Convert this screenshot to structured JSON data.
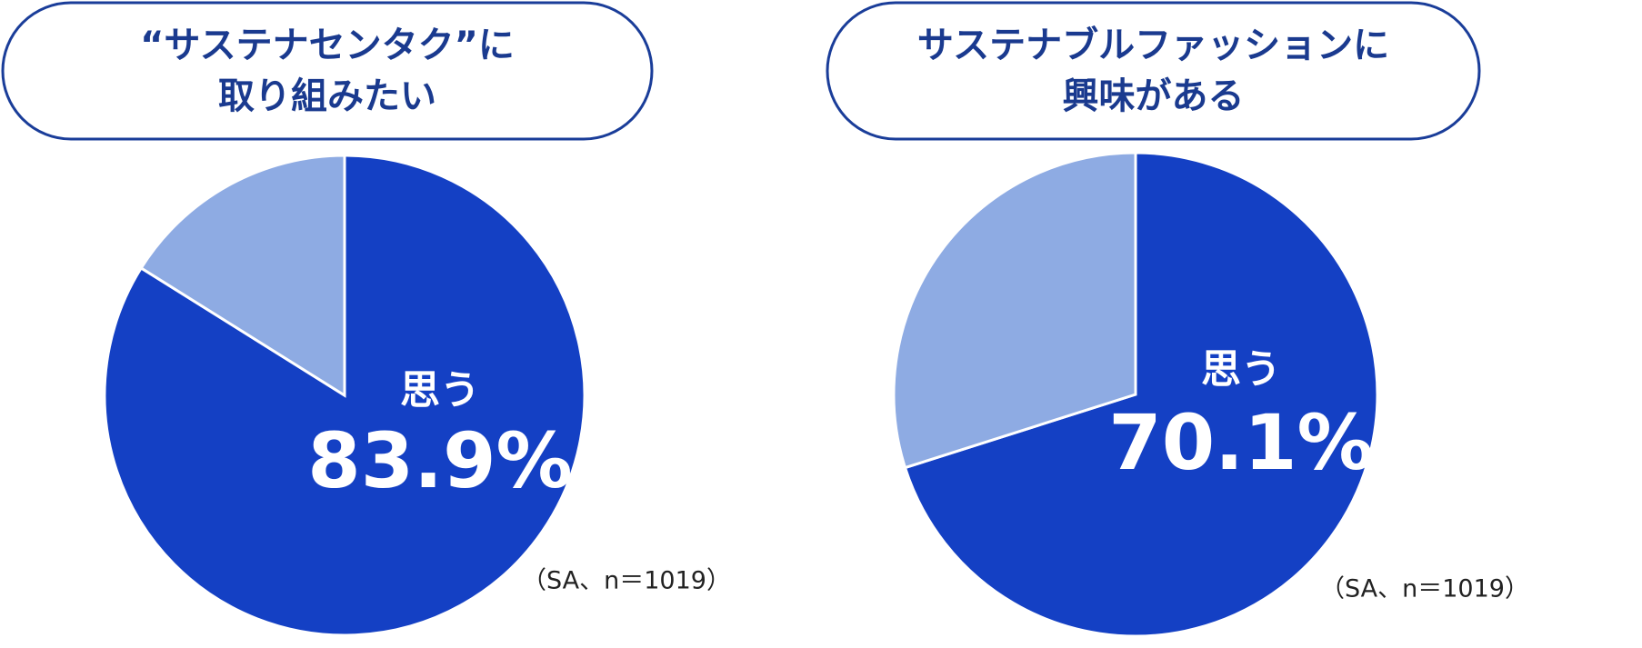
{
  "chart_data": [
    {
      "type": "pie",
      "title": [
        "“サステナセンタク”に",
        "取り組みたい"
      ],
      "categories": [
        "思う",
        null
      ],
      "values": [
        83.9,
        16.1
      ],
      "value_labels": [
        "83.9%",
        null
      ],
      "colors": [
        "#1440c4",
        "#8eabe3"
      ],
      "note": "（SA、n＝1019）"
    },
    {
      "type": "pie",
      "title": [
        "サステナブルファッションに",
        "興味がある"
      ],
      "categories": [
        "思う",
        null
      ],
      "values": [
        70.1,
        29.9
      ],
      "value_labels": [
        "70.1%",
        null
      ],
      "colors": [
        "#1440c4",
        "#8eabe3"
      ],
      "note": "（SA、n＝1019）"
    }
  ]
}
